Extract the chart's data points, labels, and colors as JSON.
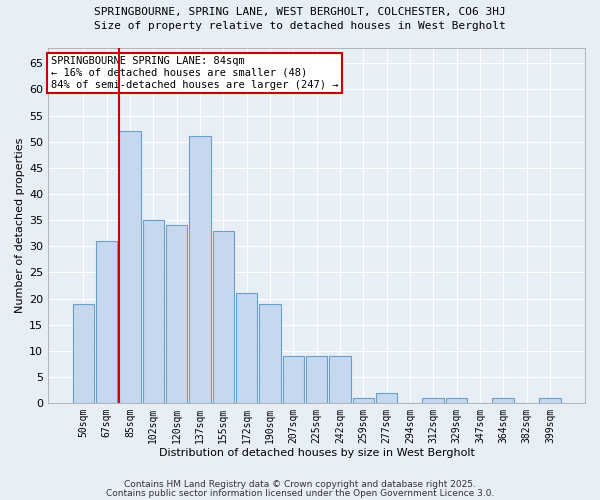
{
  "title1": "SPRINGBOURNE, SPRING LANE, WEST BERGHOLT, COLCHESTER, CO6 3HJ",
  "title2": "Size of property relative to detached houses in West Bergholt",
  "xlabel": "Distribution of detached houses by size in West Bergholt",
  "ylabel": "Number of detached properties",
  "bar_color": "#c5d8ee",
  "bar_edge_color": "#6aa0cc",
  "categories": [
    "50sqm",
    "67sqm",
    "85sqm",
    "102sqm",
    "120sqm",
    "137sqm",
    "155sqm",
    "172sqm",
    "190sqm",
    "207sqm",
    "225sqm",
    "242sqm",
    "259sqm",
    "277sqm",
    "294sqm",
    "312sqm",
    "329sqm",
    "347sqm",
    "364sqm",
    "382sqm",
    "399sqm"
  ],
  "values": [
    19,
    31,
    52,
    35,
    34,
    51,
    33,
    21,
    19,
    9,
    9,
    9,
    1,
    2,
    0,
    1,
    1,
    0,
    1,
    0,
    1
  ],
  "ylim": [
    0,
    68
  ],
  "yticks": [
    0,
    5,
    10,
    15,
    20,
    25,
    30,
    35,
    40,
    45,
    50,
    55,
    60,
    65
  ],
  "red_line_index": 2,
  "annotation_line1": "SPRINGBOURNE SPRING LANE: 84sqm",
  "annotation_line2": "← 16% of detached houses are smaller (48)",
  "annotation_line3": "84% of semi-detached houses are larger (247) →",
  "annotation_box_color": "#ffffff",
  "annotation_border_color": "#cc0000",
  "bg_color": "#e8eef5",
  "grid_color": "#ffffff",
  "footer1": "Contains HM Land Registry data © Crown copyright and database right 2025.",
  "footer2": "Contains public sector information licensed under the Open Government Licence 3.0."
}
